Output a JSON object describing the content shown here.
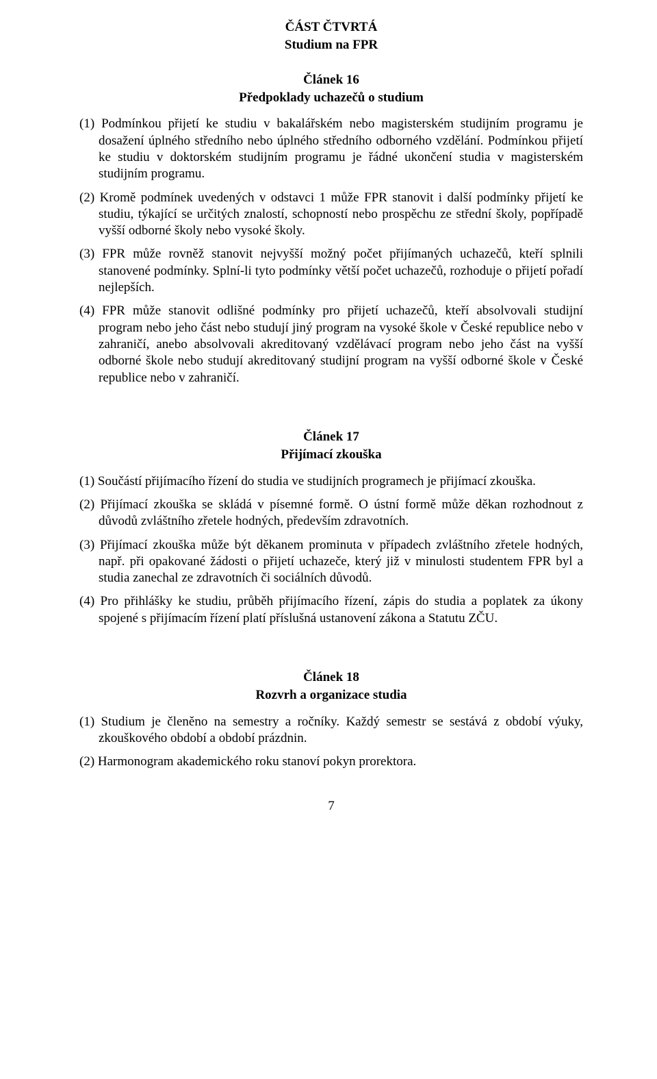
{
  "part": {
    "heading": "ČÁST ČTVRTÁ",
    "subtitle": "Studium na FPR"
  },
  "articles": [
    {
      "num": "Článek 16",
      "title": "Předpoklady uchazečů o studium",
      "paras": [
        "(1) Podmínkou přijetí ke studiu v bakalářském nebo magisterském studijním programu je dosažení úplného středního nebo úplného středního odborného vzdělání. Podmínkou přijetí ke studiu v doktorském studijním programu je řádné ukončení studia v magisterském studijním programu.",
        "(2) Kromě podmínek uvedených v odstavci 1 může FPR stanovit i další podmínky přijetí ke studiu, týkající se určitých znalostí, schopností nebo prospěchu ze střední školy, popřípadě vyšší odborné školy nebo vysoké školy.",
        "(3) FPR může rovněž stanovit nejvyšší možný počet přijímaných uchazečů, kteří splnili stanovené podmínky. Splní-li tyto podmínky větší počet uchazečů, rozhoduje o přijetí pořadí nejlepších.",
        "(4) FPR může stanovit odlišné podmínky pro přijetí uchazečů, kteří absolvovali studijní program nebo jeho část nebo studují jiný program na vysoké škole v České republice nebo v zahraničí, anebo absolvovali akreditovaný vzdělávací program nebo jeho část na vyšší odborné škole nebo studují akreditovaný studijní program na vyšší odborné škole v České republice nebo v zahraničí."
      ]
    },
    {
      "num": "Článek 17",
      "title": "Přijímací zkouška",
      "paras": [
        "(1) Součástí přijímacího řízení do studia ve studijních programech je přijímací zkouška.",
        "(2) Přijímací zkouška se skládá v písemné formě. O ústní formě může děkan rozhodnout z důvodů zvláštního zřetele hodných, především zdravotních.",
        "(3) Přijímací zkouška může být děkanem prominuta v případech zvláštního zřetele hodných, např. při opakované žádosti o přijetí uchazeče, který již v minulosti studentem FPR byl a studia zanechal ze zdravotních či sociálních důvodů.",
        "(4) Pro přihlášky ke studiu, průběh přijímacího řízení, zápis do studia a poplatek za úkony spojené s přijímacím řízení platí příslušná ustanovení zákona a Statutu ZČU."
      ]
    },
    {
      "num": "Článek 18",
      "title": "Rozvrh a organizace studia",
      "paras": [
        "(1) Studium je členěno na semestry a ročníky. Každý semestr se sestává z období výuky, zkouškového období a období prázdnin.",
        "(2) Harmonogram akademického roku stanoví pokyn prorektora."
      ]
    }
  ],
  "page_number": "7"
}
